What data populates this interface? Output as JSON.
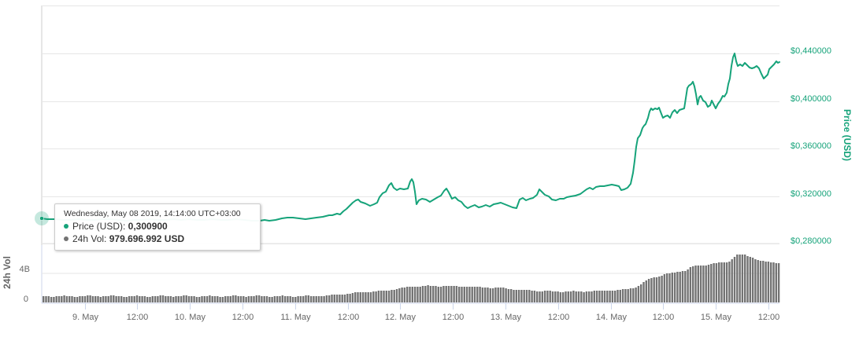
{
  "chart_data": {
    "type": "line",
    "title": "",
    "colors": {
      "price": "#16a37a",
      "volume": "#737373",
      "grid": "#e6e6e6",
      "tick": "#ccd6eb"
    },
    "x_axis": {
      "labels": [
        "9. May",
        "12:00",
        "10. May",
        "12:00",
        "11. May",
        "12:00",
        "12. May",
        "12:00",
        "13. May",
        "12:00",
        "14. May",
        "12:00",
        "15. May",
        "12:00"
      ],
      "range": [
        "2019-05-08 ~13:00",
        "2019-05-15 ~18:00"
      ]
    },
    "price_axis": {
      "title": "Price (USD)",
      "position": "right",
      "tick_labels": [
        "$0,280000",
        "$0,320000",
        "$0,360000",
        "$0,400000",
        "$0,440000"
      ],
      "ticks": [
        0.28,
        0.32,
        0.36,
        0.4,
        0.44
      ],
      "ylim": [
        0.28,
        0.48
      ],
      "grid": true
    },
    "volume_axis": {
      "title": "24h Vol",
      "position": "left",
      "tick_labels": [
        "0",
        "4B"
      ],
      "ticks": [
        0,
        4000000000
      ],
      "ylim": [
        0,
        8000000000
      ]
    },
    "series": [
      {
        "name": "Price (USD)",
        "type": "line",
        "x": [
          "05-08 13:00",
          "05-08 18:00",
          "05-09 00:00",
          "05-09 12:00",
          "05-10 00:00",
          "05-10 12:00",
          "05-11 00:00",
          "05-11 06:00",
          "05-11 12:00",
          "05-11 16:00",
          "05-11 20:00",
          "05-12 00:00",
          "05-12 02:00",
          "05-12 04:00",
          "05-12 06:00",
          "05-12 12:00",
          "05-12 18:00",
          "05-13 00:00",
          "05-13 06:00",
          "05-13 12:00",
          "05-13 18:00",
          "05-14 00:00",
          "05-14 06:00",
          "05-14 12:00",
          "05-14 14:00",
          "05-14 18:00",
          "05-15 00:00",
          "05-15 06:00",
          "05-15 08:00",
          "05-15 12:00",
          "05-15 18:00"
        ],
        "values": [
          0.3009,
          0.2995,
          0.2995,
          0.2985,
          0.299,
          0.2995,
          0.302,
          0.307,
          0.318,
          0.32,
          0.325,
          0.325,
          0.333,
          0.31,
          0.315,
          0.31,
          0.307,
          0.308,
          0.314,
          0.315,
          0.322,
          0.326,
          0.326,
          0.359,
          0.39,
          0.385,
          0.413,
          0.39,
          0.396,
          0.443,
          0.434
        ]
      },
      {
        "name": "24h Vol",
        "type": "column",
        "x": [
          "05-08",
          "05-09",
          "05-10",
          "05-11 00:00",
          "05-11 12:00",
          "05-12 00:00",
          "05-12 12:00",
          "05-13 00:00",
          "05-13 12:00",
          "05-14 00:00",
          "05-14 06:00",
          "05-14 12:00",
          "05-14 18:00",
          "05-15 00:00",
          "05-15 06:00",
          "05-15 12:00",
          "05-15 18:00"
        ],
        "values": [
          980000000.0,
          980000000.0,
          980000000.0,
          1000000000.0,
          1400000000.0,
          2300000000.0,
          2300000000.0,
          2000000000.0,
          1700000000.0,
          1600000000.0,
          2300000000.0,
          3500000000.0,
          4100000000.0,
          5100000000.0,
          5700000000.0,
          6600000000.0,
          5400000000.0
        ]
      }
    ],
    "tooltip": {
      "date": "Wednesday, May 08 2019, 14:14:00 UTC+03:00",
      "price_label": "Price (USD): ",
      "price_value": "0,300900",
      "vol_label": "24h Vol: ",
      "vol_value": "979.696.992 USD"
    }
  }
}
